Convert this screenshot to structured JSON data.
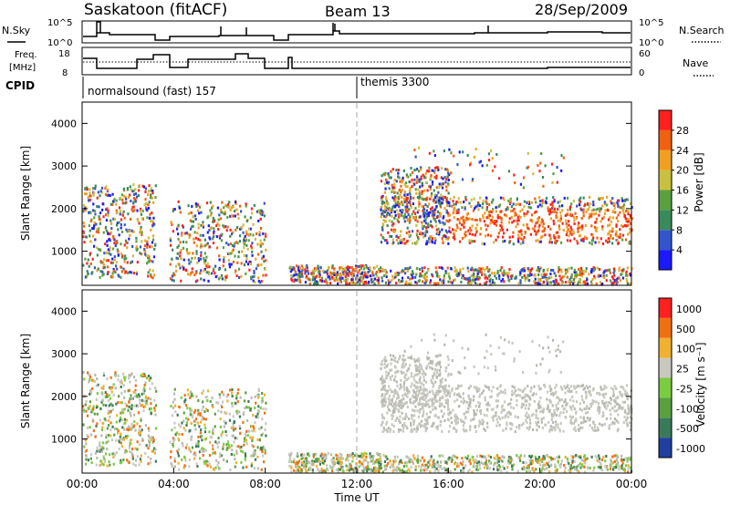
{
  "header": {
    "station": "Saskatoon (fitACF)",
    "beam": "Beam 13",
    "date": "28/Sep/2009"
  },
  "noise_panel": {
    "left_label": "N.Sky",
    "right_label": "N.Search",
    "y_ticks": [
      "10^5",
      "10^0"
    ],
    "y_ticks_right": [
      "10^5",
      "10^0"
    ]
  },
  "freq_panel": {
    "left_label_1": "Freq.",
    "left_label_2": "[MHz]",
    "right_label": "Nave",
    "y_ticks_left": [
      "18",
      "8"
    ],
    "y_ticks_right": [
      "60",
      "0"
    ]
  },
  "cpid": {
    "label": "CPID",
    "mode_1": "normalsound (fast) 157",
    "mode_2": "themis 3300"
  },
  "chart_data": [
    {
      "type": "heatmap",
      "name": "power",
      "xlabel": "",
      "ylabel": "Slant Range [km]",
      "xlim": [
        0,
        24
      ],
      "ylim": [
        200,
        4500
      ],
      "y_ticks": [
        "1000",
        "2000",
        "3000",
        "4000"
      ],
      "colorbar_label": "Power [dB]",
      "colorbar_ticks": [
        "4",
        "8",
        "12",
        "16",
        "20",
        "24",
        "28"
      ],
      "colorbar_colors": [
        "#1a1aff",
        "#3355cc",
        "#3a8a5a",
        "#5aa040",
        "#c8c040",
        "#f0a020",
        "#f06010",
        "#ff2020"
      ]
    },
    {
      "type": "heatmap",
      "name": "velocity",
      "xlabel": "Time UT",
      "ylabel": "Slant Range [km]",
      "xlim": [
        0,
        24
      ],
      "ylim": [
        200,
        4500
      ],
      "x_ticks": [
        "00:00",
        "04:00",
        "08:00",
        "12:00",
        "16:00",
        "20:00",
        "00:00"
      ],
      "y_ticks": [
        "1000",
        "2000",
        "3000",
        "4000"
      ],
      "colorbar_label": "Velocity [m s⁻¹]",
      "colorbar_ticks": [
        "1000",
        "500",
        "100",
        "25",
        "-25",
        "-100",
        "-500",
        "-1000"
      ],
      "colorbar_colors": [
        "#2040a0",
        "#3a7a5a",
        "#5aa040",
        "#7acc40",
        "#c8c8c0",
        "#f0b030",
        "#f07010",
        "#ff2020"
      ]
    }
  ]
}
